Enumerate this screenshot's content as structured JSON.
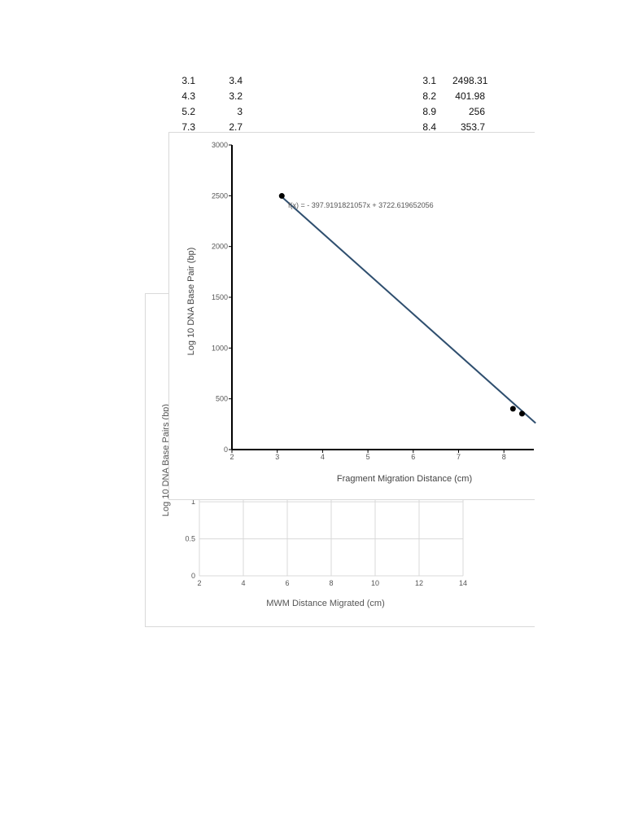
{
  "table_left": {
    "rows": [
      [
        "3.1",
        "3.4"
      ],
      [
        "4.3",
        "3.2"
      ],
      [
        "5.2",
        "3"
      ],
      [
        "7.3",
        "2.7"
      ]
    ]
  },
  "table_right": {
    "rows": [
      [
        "3.1",
        "2498.31"
      ],
      [
        "8.2",
        "401.98"
      ],
      [
        "8.9",
        "256"
      ],
      [
        "8.4",
        "353.7"
      ]
    ]
  },
  "chart_data": [
    {
      "type": "scatter",
      "xlabel": "Fragment Migration Distance (cm)",
      "ylabel": "Log 10 DNA Base Pair (bp)",
      "xlim": [
        2,
        8.7
      ],
      "ylim": [
        0,
        3000
      ],
      "x_ticks": [
        "2",
        "3",
        "4",
        "5",
        "6",
        "7",
        "8"
      ],
      "y_ticks": [
        "0",
        "500",
        "1000",
        "1500",
        "2000",
        "2500",
        "3000"
      ],
      "points": [
        {
          "x": 3.1,
          "y": 2498.31
        },
        {
          "x": 8.2,
          "y": 401.98
        },
        {
          "x": 8.4,
          "y": 353.7
        }
      ],
      "trendline": {
        "slope": -397.9191821057,
        "intercept": 3722.619652056,
        "x_range": [
          3.1,
          8.7
        ]
      },
      "equation": "f(x) = - 397.9191821057x + 3722.619652056",
      "colors": {
        "points": "#000000",
        "trendline": "#2f4f6f"
      }
    },
    {
      "type": "scatter",
      "xlabel": "MWM Distance Migrated (cm)",
      "ylabel": "Log 10 DNA Base Pairs (bp)",
      "xlim": [
        2,
        14
      ],
      "ylim": [
        0,
        1.2
      ],
      "x_ticks": [
        "2",
        "4",
        "6",
        "8",
        "10",
        "12",
        "14"
      ],
      "y_ticks": [
        "0",
        "0.5",
        "1"
      ],
      "points": []
    }
  ]
}
